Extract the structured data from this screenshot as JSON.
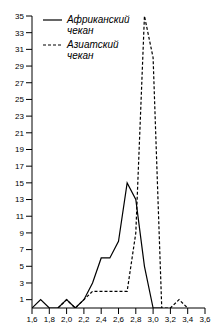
{
  "chart_data": {
    "type": "line",
    "x": [
      1.6,
      1.7,
      1.8,
      1.9,
      2.0,
      2.1,
      2.2,
      2.3,
      2.4,
      2.5,
      2.6,
      2.7,
      2.8,
      2.9,
      3.0,
      3.1,
      3.2,
      3.3,
      3.4
    ],
    "series": [
      {
        "name": "Африканский чекан",
        "color": "#000000",
        "line_style": "solid",
        "marker": "none",
        "values": [
          0,
          1,
          0,
          0,
          1,
          0,
          1,
          3,
          6,
          6,
          8,
          15,
          13,
          5,
          0,
          0,
          null,
          null,
          null
        ]
      },
      {
        "name": "Азиатский чекан",
        "color": "#000000",
        "line_style": "dashed",
        "marker": "none",
        "values": [
          null,
          null,
          null,
          0,
          1,
          0,
          1,
          2,
          2,
          2,
          2,
          2,
          9,
          35,
          30,
          0,
          0,
          1,
          0
        ]
      }
    ],
    "xlim": [
      1.6,
      3.6
    ],
    "xticks": [
      {
        "value": 1.6,
        "label": "1,6"
      },
      {
        "value": 1.8,
        "label": "1,8"
      },
      {
        "value": 2.0,
        "label": "2,0"
      },
      {
        "value": 2.2,
        "label": "2,2"
      },
      {
        "value": 2.4,
        "label": "2,4"
      },
      {
        "value": 2.6,
        "label": "2,6"
      },
      {
        "value": 2.8,
        "label": "2,8"
      },
      {
        "value": 3.0,
        "label": "3,0"
      },
      {
        "value": 3.2,
        "label": "3,2"
      },
      {
        "value": 3.4,
        "label": "3,4"
      },
      {
        "value": 3.6,
        "label": "3,6"
      }
    ],
    "ylim": [
      0,
      35
    ],
    "yticks": [
      1,
      3,
      5,
      7,
      9,
      11,
      13,
      15,
      17,
      19,
      21,
      23,
      25,
      27,
      29,
      31,
      33,
      35
    ],
    "grid": false,
    "legend": "upper left"
  }
}
